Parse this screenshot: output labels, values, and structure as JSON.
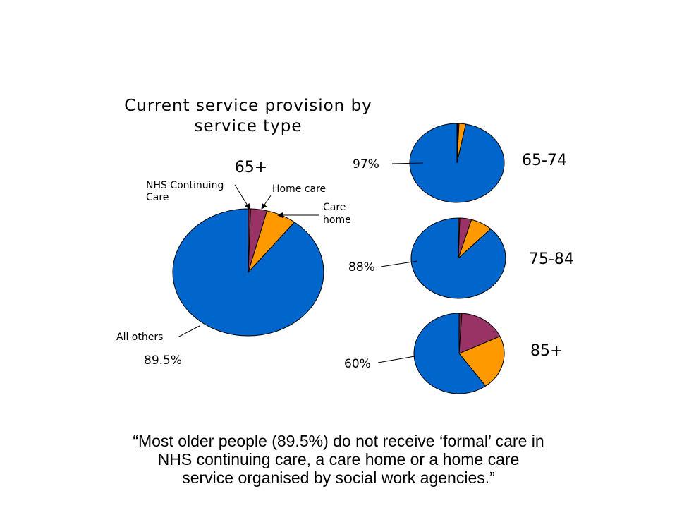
{
  "chart_data": [
    {
      "type": "pie",
      "title": "Current service provision by service type",
      "title_lines": [
        "Current service provision by",
        "service type"
      ],
      "group_label": "65+",
      "slices": [
        {
          "label": "NHS Continuing Care",
          "value": 0.5
        },
        {
          "label": "Home care",
          "value": 3.5
        },
        {
          "label": "Care home",
          "value": 6.5
        },
        {
          "label": "All others",
          "value": 89.5
        }
      ],
      "annotations": {
        "nhs": [
          "NHS Continuing",
          "Care"
        ],
        "home_care": "Home care",
        "care_home": [
          "Care",
          "home"
        ],
        "all_others": "All others",
        "all_others_pct": "89.5%"
      }
    },
    {
      "type": "pie",
      "group_label": "65-74",
      "pct_label": "97%",
      "slices": [
        {
          "label": "NHS Continuing Care",
          "value": 0.3
        },
        {
          "label": "Home care",
          "value": 0.4
        },
        {
          "label": "Care home",
          "value": 2.3
        },
        {
          "label": "All others",
          "value": 97
        }
      ]
    },
    {
      "type": "pie",
      "group_label": "75-84",
      "pct_label": "88%",
      "slices": [
        {
          "label": "NHS Continuing Care",
          "value": 0.5
        },
        {
          "label": "Home care",
          "value": 4
        },
        {
          "label": "Care home",
          "value": 7.5
        },
        {
          "label": "All others",
          "value": 88
        }
      ]
    },
    {
      "type": "pie",
      "group_label": "85+",
      "pct_label": "60%",
      "slices": [
        {
          "label": "NHS Continuing Care",
          "value": 1
        },
        {
          "label": "Home care",
          "value": 17
        },
        {
          "label": "Care home",
          "value": 22
        },
        {
          "label": "All others",
          "value": 60
        }
      ]
    }
  ],
  "colors": {
    "nhs": "#7a1f3d",
    "home_care": "#993366",
    "care_home": "#ff9900",
    "all_others": "#0066cc"
  },
  "caption": {
    "line1": "“Most older people (89.5%) do not receive ‘formal’ care in",
    "line2": "NHS continuing care, a care home or a home care",
    "line3": "service organised by social work agencies.”"
  }
}
